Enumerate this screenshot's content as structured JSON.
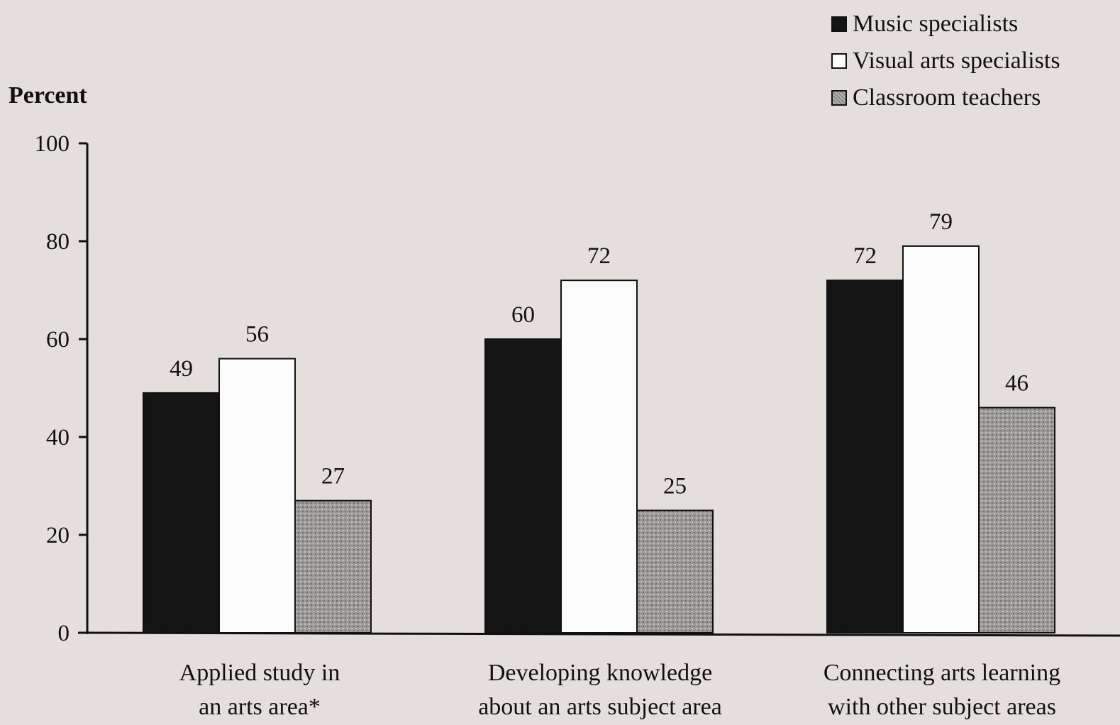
{
  "chart_data": {
    "type": "bar",
    "ylabel": "Percent",
    "ylim": [
      0,
      100
    ],
    "yticks": [
      0,
      20,
      40,
      60,
      80,
      100
    ],
    "categories": [
      [
        "Applied study in",
        "an arts area*"
      ],
      [
        "Developing knowledge",
        "about an arts subject area"
      ],
      [
        "Connecting arts learning",
        "with other subject areas"
      ]
    ],
    "series": [
      {
        "name": "Music specialists",
        "values": [
          49,
          60,
          72
        ],
        "color": "#141414"
      },
      {
        "name": "Visual arts specialists",
        "values": [
          56,
          72,
          79
        ],
        "color": "#fbfbfb"
      },
      {
        "name": "Classroom teachers",
        "values": [
          27,
          25,
          46
        ],
        "color": "#9a9896"
      }
    ],
    "legend_position": "top-right",
    "grid": false
  }
}
